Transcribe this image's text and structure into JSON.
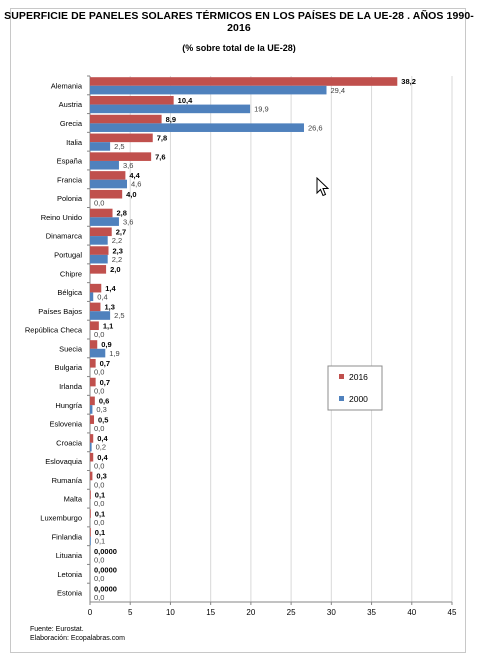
{
  "header": {
    "title": "SUPERFICIE DE PANELES SOLARES TÉRMICOS EN LOS PAÍSES DE LA UE-28 . AÑOS 1990-2016",
    "subtitle": "(% sobre total de la UE-28)"
  },
  "footer": {
    "source": "Fuente: Eurostat.",
    "credit": "Elaboración: Ecopalabras.com"
  },
  "chart_data": {
    "type": "bar",
    "orientation": "horizontal",
    "title": "SUPERFICIE DE PANELES SOLARES TÉRMICOS EN LOS PAÍSES DE LA UE-28 . AÑOS 1990-2016",
    "subtitle": "(% sobre total de la UE-28)",
    "categories": [
      "Alemania",
      "Austria",
      "Grecia",
      "Italia",
      "España",
      "Francia",
      "Polonia",
      "Reino Unido",
      "Dinamarca",
      "Portugal",
      "Chipre",
      "Bélgica",
      "Países Bajos",
      "República Checa",
      "Suecia",
      "Bulgaria",
      "Irlanda",
      "Hungría",
      "Eslovenia",
      "Croacia",
      "Eslovaquia",
      "Rumanía",
      "Malta",
      "Luxemburgo",
      "Finlandia",
      "Lituania",
      "Letonia",
      "Estonia"
    ],
    "series": [
      {
        "name": "2016",
        "color": "#c0504d",
        "values": [
          38.2,
          10.4,
          8.9,
          7.8,
          7.6,
          4.4,
          4.0,
          2.8,
          2.7,
          2.3,
          2.0,
          1.4,
          1.3,
          1.1,
          0.9,
          0.7,
          0.7,
          0.6,
          0.5,
          0.4,
          0.4,
          0.3,
          0.1,
          0.1,
          0.1,
          0.0,
          0.0,
          0.0
        ],
        "labels": [
          "38,2",
          "10,4",
          "8,9",
          "7,8",
          "7,6",
          "4,4",
          "4,0",
          "2,8",
          "2,7",
          "2,3",
          "2,0",
          "1,4",
          "1,3",
          "1,1",
          "0,9",
          "0,7",
          "0,7",
          "0,6",
          "0,5",
          "0,4",
          "0,4",
          "0,3",
          "0,1",
          "0,1",
          "0,1",
          "0,0000",
          "0,0000",
          "0,0000"
        ]
      },
      {
        "name": "2000",
        "color": "#4f81bd",
        "values": [
          29.4,
          19.9,
          26.6,
          2.5,
          3.6,
          4.6,
          0.0,
          3.6,
          2.2,
          2.2,
          null,
          0.4,
          2.5,
          0.0,
          1.9,
          0.0,
          0.0,
          0.3,
          0.0,
          0.2,
          0.0,
          0.0,
          0.0,
          0.0,
          0.1,
          0.0,
          0.0,
          0.0
        ],
        "labels": [
          "29,4",
          "19,9",
          "26,6",
          "2,5",
          "3,6",
          "4,6",
          "0,0",
          "3,6",
          "2,2",
          "2,2",
          "",
          "0,4",
          "2,5",
          "0,0",
          "1,9",
          "0,0",
          "0,0",
          "0,3",
          "0,0",
          "0,2",
          "0,0",
          "0,0",
          "0,0",
          "0,0",
          "0,1",
          "0,0",
          "0,0",
          "0,0"
        ]
      }
    ],
    "xlim": [
      0,
      45
    ],
    "xticks": [
      "0",
      "5",
      "10",
      "15",
      "20",
      "25",
      "30",
      "35",
      "40",
      "45"
    ],
    "grid": true,
    "legend": "right-middle",
    "legend_entries": [
      "2016",
      "2000"
    ]
  }
}
